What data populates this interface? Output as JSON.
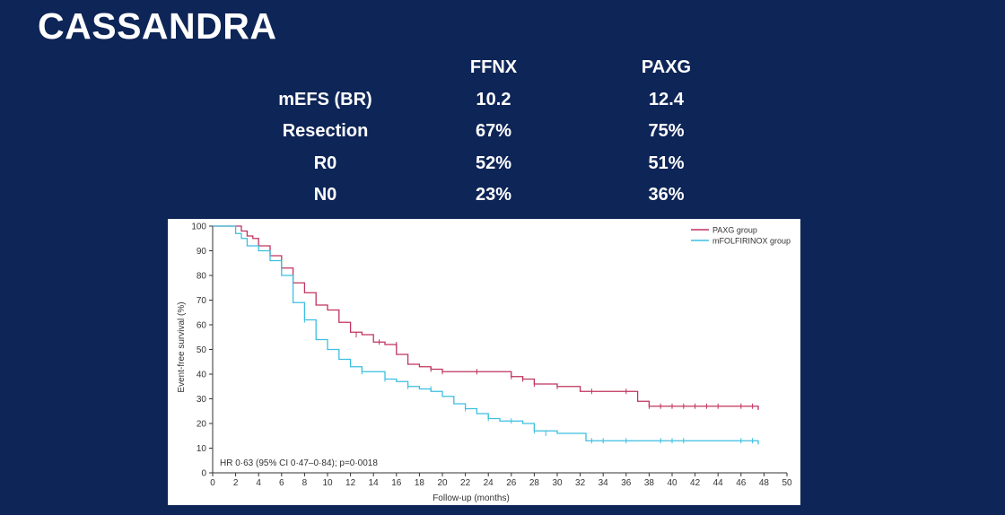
{
  "title": "CASSANDRA",
  "table": {
    "headers": [
      "",
      "FFNX",
      "PAXG"
    ],
    "rows": [
      [
        "mEFS (BR)",
        "10.2",
        "12.4"
      ],
      [
        "Resection",
        "67%",
        "75%"
      ],
      [
        "R0",
        "52%",
        "51%"
      ],
      [
        "N0",
        "23%",
        "36%"
      ]
    ]
  },
  "chart_data": {
    "type": "line",
    "xlabel": "Follow-up (months)",
    "ylabel": "Event-free survival (%)",
    "xlim": [
      0,
      50
    ],
    "ylim": [
      0,
      100
    ],
    "xticks": [
      0,
      2,
      4,
      6,
      8,
      10,
      12,
      14,
      16,
      18,
      20,
      22,
      24,
      26,
      28,
      30,
      32,
      34,
      36,
      38,
      40,
      42,
      44,
      46,
      48,
      50
    ],
    "yticks": [
      0,
      10,
      20,
      30,
      40,
      50,
      60,
      70,
      80,
      90,
      100
    ],
    "grid": false,
    "legend_position": "top-right",
    "annotation": "HR 0·63 (95% CI 0·47–0·84); p=0·0018",
    "series": [
      {
        "name": "PAXG group",
        "color": "#c0335e",
        "x": [
          0,
          2,
          2.5,
          3,
          3.5,
          4,
          5,
          6,
          7,
          8,
          9,
          10,
          11,
          12,
          13,
          14,
          15,
          16,
          17,
          18,
          19,
          20,
          22,
          24,
          26,
          27,
          28,
          30,
          32,
          34,
          36,
          37,
          38,
          40,
          42,
          44,
          46,
          47.5
        ],
        "y": [
          100,
          100,
          98,
          96,
          95,
          92,
          88,
          83,
          77,
          73,
          68,
          66,
          61,
          57,
          56,
          53,
          52,
          48,
          44,
          43,
          42,
          41,
          41,
          41,
          39,
          38,
          36,
          35,
          33,
          33,
          33,
          29,
          27,
          27,
          27,
          27,
          27,
          25.5
        ],
        "censor_x": [
          12.5,
          14.5,
          16,
          19,
          20,
          23,
          26,
          27,
          28,
          30,
          33,
          36,
          38,
          39,
          40,
          41,
          42,
          43,
          44,
          46,
          47
        ],
        "censor_y": [
          56,
          53,
          52,
          42,
          41,
          41,
          39,
          38,
          36,
          35,
          33,
          33,
          27,
          27,
          27,
          27,
          27,
          27,
          27,
          27,
          27
        ]
      },
      {
        "name": "mFOLFIRINOX group",
        "color": "#3bbfe0",
        "x": [
          0,
          1.5,
          2,
          2.5,
          3,
          4,
          5,
          6,
          7,
          8,
          9,
          10,
          11,
          12,
          13,
          14,
          15,
          16,
          17,
          18,
          19,
          20,
          21,
          22,
          23,
          24,
          25,
          26,
          27,
          28,
          30,
          32,
          32.5,
          34,
          36,
          38,
          40,
          42,
          44,
          46,
          47.5
        ],
        "y": [
          100,
          100,
          97,
          95,
          92,
          90,
          86,
          80,
          69,
          62,
          54,
          50,
          46,
          43,
          41,
          41,
          38,
          37,
          35,
          34,
          33,
          31,
          28,
          26,
          24,
          22,
          21,
          21,
          20,
          17,
          16,
          16,
          13,
          13,
          13,
          13,
          13,
          13,
          13,
          13,
          11.5
        ],
        "censor_x": [
          8,
          13,
          15,
          17,
          19,
          22,
          24,
          26,
          28,
          29,
          33,
          34,
          36,
          39,
          40,
          41,
          46,
          47
        ],
        "censor_y": [
          62,
          41,
          38,
          35,
          34,
          26,
          22,
          21,
          17,
          16,
          13,
          13,
          13,
          13,
          13,
          13,
          13,
          13
        ]
      }
    ]
  }
}
